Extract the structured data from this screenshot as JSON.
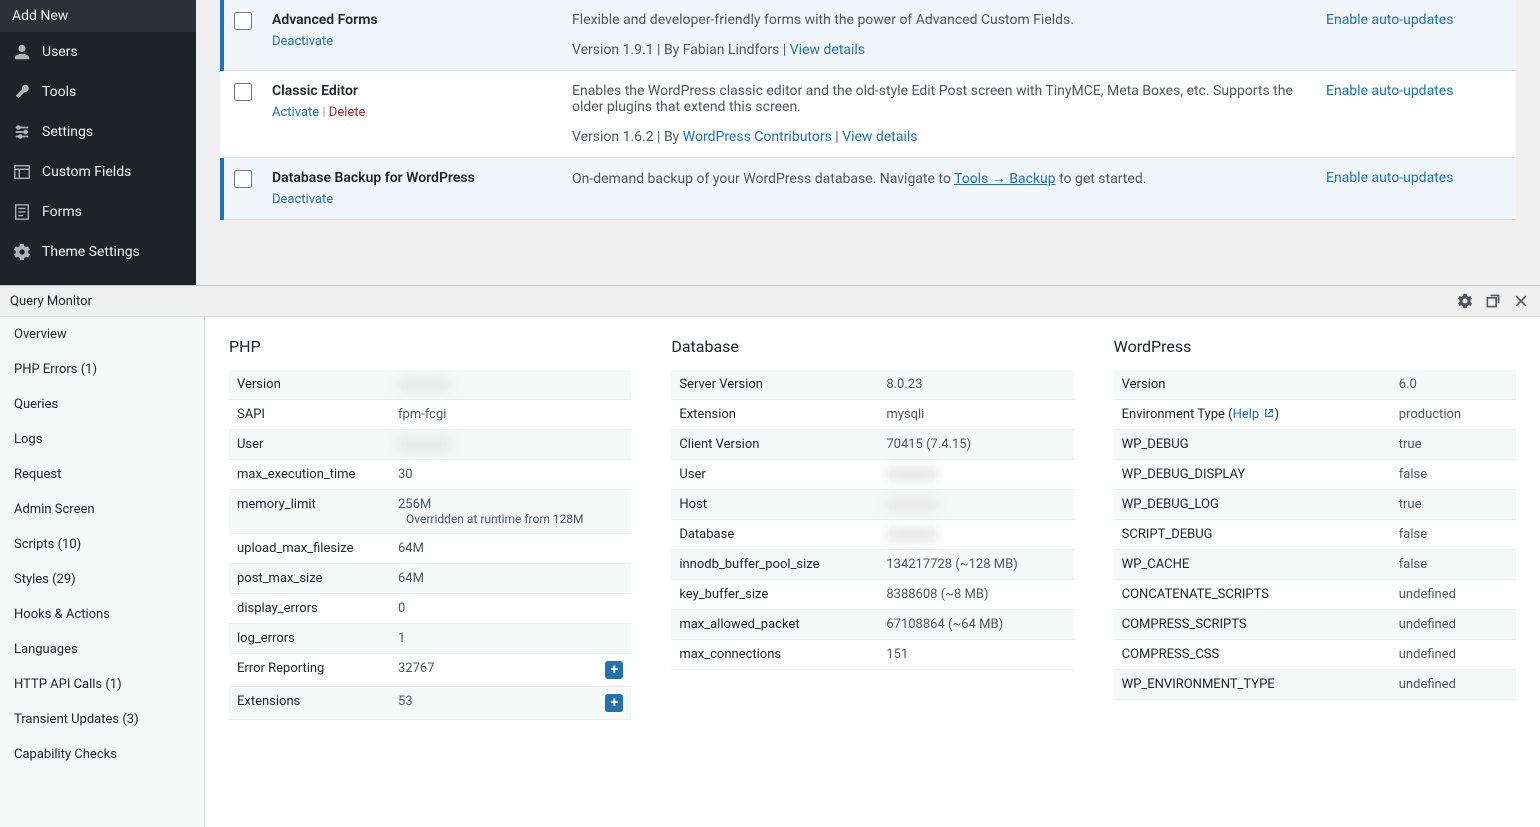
{
  "sidebar": {
    "add_new": "Add New",
    "items": [
      {
        "icon": "users",
        "label": "Users"
      },
      {
        "icon": "tools",
        "label": "Tools"
      },
      {
        "icon": "settings",
        "label": "Settings"
      },
      {
        "icon": "custom-fields",
        "label": "Custom Fields"
      },
      {
        "icon": "forms",
        "label": "Forms"
      },
      {
        "icon": "theme-settings",
        "label": "Theme Settings"
      }
    ]
  },
  "plugins": [
    {
      "name": "Advanced Forms",
      "active": true,
      "actions": [
        {
          "label": "Deactivate",
          "type": "link"
        }
      ],
      "description": "Flexible and developer-friendly forms with the power of Advanced Custom Fields.",
      "meta_prefix": "Version 1.9.1 | By Fabian Lindfors | ",
      "meta_links": [
        {
          "label": "View details"
        }
      ],
      "auto_update": "Enable auto-updates"
    },
    {
      "name": "Classic Editor",
      "active": false,
      "actions": [
        {
          "label": "Activate",
          "type": "link"
        },
        {
          "label": "Delete",
          "type": "delete"
        }
      ],
      "description": "Enables the WordPress classic editor and the old-style Edit Post screen with TinyMCE, Meta Boxes, etc. Supports the older plugins that extend this screen.",
      "meta_prefix": "Version 1.6.2 | By ",
      "meta_links": [
        {
          "label": "WordPress Contributors"
        },
        {
          "label": "View details"
        }
      ],
      "auto_update": "Enable auto-updates"
    },
    {
      "name": "Database Backup for WordPress",
      "active": true,
      "actions": [
        {
          "label": "Deactivate",
          "type": "link"
        }
      ],
      "description_pre": "On-demand backup of your WordPress database. Navigate to ",
      "description_link": "Tools → Backup",
      "description_post": " to get started.",
      "auto_update": "Enable auto-updates"
    }
  ],
  "qm": {
    "title": "Query Monitor",
    "sidebar": [
      "Overview",
      "PHP Errors (1)",
      "Queries",
      "Logs",
      "Request",
      "Admin Screen",
      "Scripts (10)",
      "Styles (29)",
      "Hooks & Actions",
      "Languages",
      "HTTP API Calls (1)",
      "Transient Updates (3)",
      "Capability Checks"
    ],
    "php": {
      "title": "PHP",
      "rows": [
        {
          "k": "Version",
          "v": "",
          "blur": true
        },
        {
          "k": "SAPI",
          "v": "fpm-fcgi"
        },
        {
          "k": "User",
          "v": "",
          "blur": true
        },
        {
          "k": "max_execution_time",
          "v": "30"
        },
        {
          "k": "memory_limit",
          "v": "256M",
          "note": "Overridden at runtime from 128M"
        },
        {
          "k": "upload_max_filesize",
          "v": "64M"
        },
        {
          "k": "post_max_size",
          "v": "64M"
        },
        {
          "k": "display_errors",
          "v": "0"
        },
        {
          "k": "log_errors",
          "v": "1"
        },
        {
          "k": "Error Reporting",
          "v": "32767",
          "plus": true
        },
        {
          "k": "Extensions",
          "v": "53",
          "plus": true
        }
      ]
    },
    "database": {
      "title": "Database",
      "rows": [
        {
          "k": "Server Version",
          "v": "8.0.23"
        },
        {
          "k": "Extension",
          "v": "mysqli"
        },
        {
          "k": "Client Version",
          "v": "70415 (7.4.15)"
        },
        {
          "k": "User",
          "v": "",
          "blur": true
        },
        {
          "k": "Host",
          "v": "",
          "blur": true
        },
        {
          "k": "Database",
          "v": "",
          "blur": true
        },
        {
          "k": "innodb_buffer_pool_size",
          "v": "134217728 (~128 MB)"
        },
        {
          "k": "key_buffer_size",
          "v": "8388608 (~8 MB)"
        },
        {
          "k": "max_allowed_packet",
          "v": "67108864 (~64 MB)"
        },
        {
          "k": "max_connections",
          "v": "151"
        }
      ]
    },
    "wordpress": {
      "title": "WordPress",
      "rows": [
        {
          "k": "Version",
          "v": "6.0"
        },
        {
          "k": "Environment Type",
          "help": "Help",
          "v": "production"
        },
        {
          "k": "WP_DEBUG",
          "v": "true"
        },
        {
          "k": "WP_DEBUG_DISPLAY",
          "v": "false"
        },
        {
          "k": "WP_DEBUG_LOG",
          "v": "true"
        },
        {
          "k": "SCRIPT_DEBUG",
          "v": "false"
        },
        {
          "k": "WP_CACHE",
          "v": "false"
        },
        {
          "k": "CONCATENATE_SCRIPTS",
          "v": "undefined"
        },
        {
          "k": "COMPRESS_SCRIPTS",
          "v": "undefined"
        },
        {
          "k": "COMPRESS_CSS",
          "v": "undefined"
        },
        {
          "k": "WP_ENVIRONMENT_TYPE",
          "v": "undefined"
        }
      ]
    }
  }
}
